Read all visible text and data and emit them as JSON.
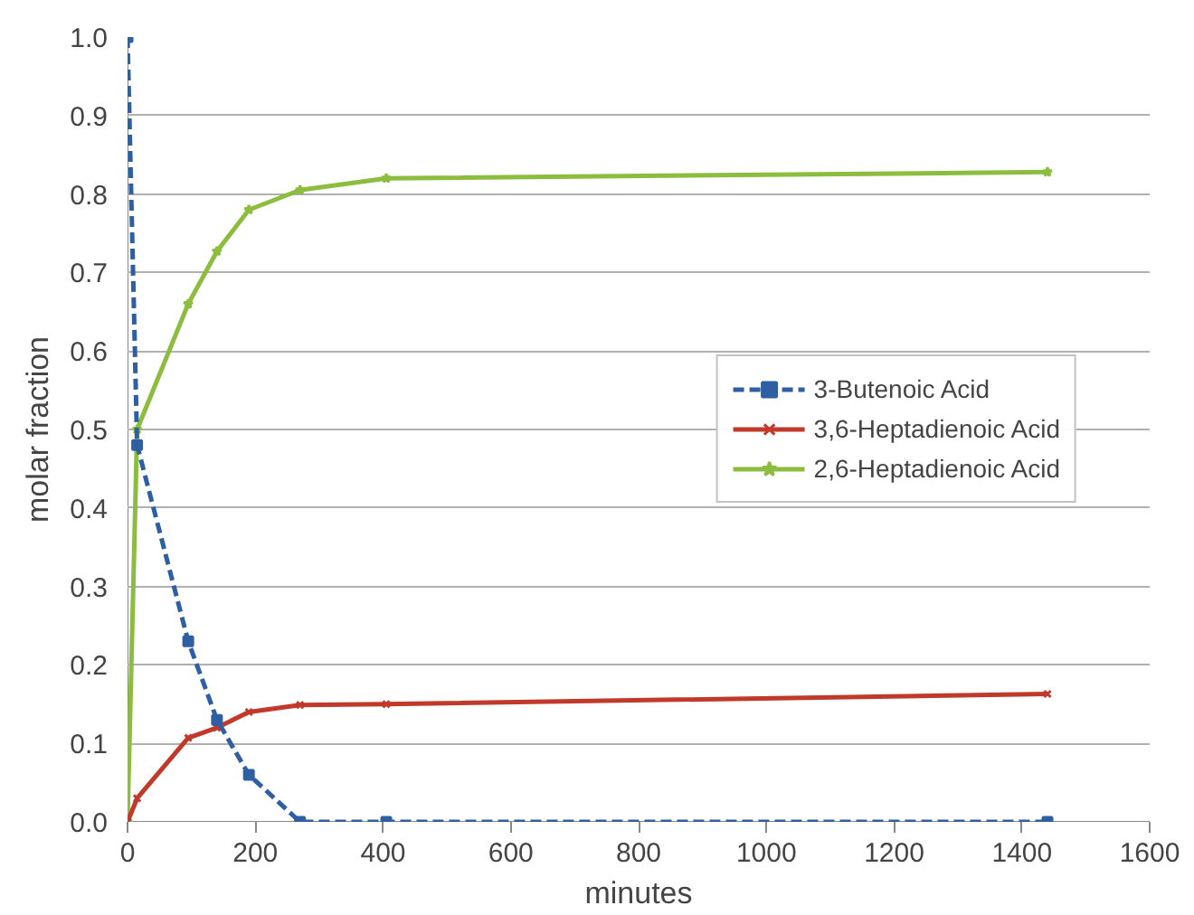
{
  "chart_data": {
    "type": "line",
    "xlabel": "minutes",
    "ylabel": "molar fraction",
    "x": [
      0,
      15,
      95,
      140,
      190,
      270,
      405,
      1440
    ],
    "series": [
      {
        "name": "3-Butenoic Acid",
        "color": "#2e5fa3",
        "line_style": "dashed",
        "marker": "square",
        "values": [
          1.0,
          0.48,
          0.23,
          0.13,
          0.06,
          0.0,
          0.0,
          0.0
        ]
      },
      {
        "name": "3,6-Heptadienoic Acid",
        "color": "#c0392b",
        "line_style": "solid",
        "marker": "cross",
        "values": [
          0.0,
          0.03,
          0.107,
          0.12,
          0.14,
          0.149,
          0.15,
          0.163
        ]
      },
      {
        "name": "2,6-Heptadienoic Acid",
        "color": "#8cbd3f",
        "line_style": "solid",
        "marker": "star",
        "values": [
          0.0,
          0.5,
          0.66,
          0.727,
          0.78,
          0.805,
          0.82,
          0.828
        ]
      }
    ],
    "xlim": [
      0,
      1600
    ],
    "xticks": [
      0,
      200,
      400,
      600,
      800,
      1000,
      1200,
      1400,
      1600
    ],
    "ylim": [
      0,
      1.0
    ],
    "yticks": [
      {
        "value": 0,
        "label": "0.0"
      },
      {
        "value": 0.1,
        "label": "0.1"
      },
      {
        "value": 0.2,
        "label": "0.2"
      },
      {
        "value": 0.3,
        "label": "0.3"
      },
      {
        "value": 0.4,
        "label": "0.4"
      },
      {
        "value": 0.5,
        "label": "0.5"
      },
      {
        "value": 0.6,
        "label": "0.6"
      },
      {
        "value": 0.7,
        "label": "0.7"
      },
      {
        "value": 0.8,
        "label": "0.8"
      },
      {
        "value": 0.9,
        "label": "0.9"
      },
      {
        "value": 1.0,
        "label": "1.0"
      }
    ],
    "grid": "y",
    "legend": "right"
  }
}
